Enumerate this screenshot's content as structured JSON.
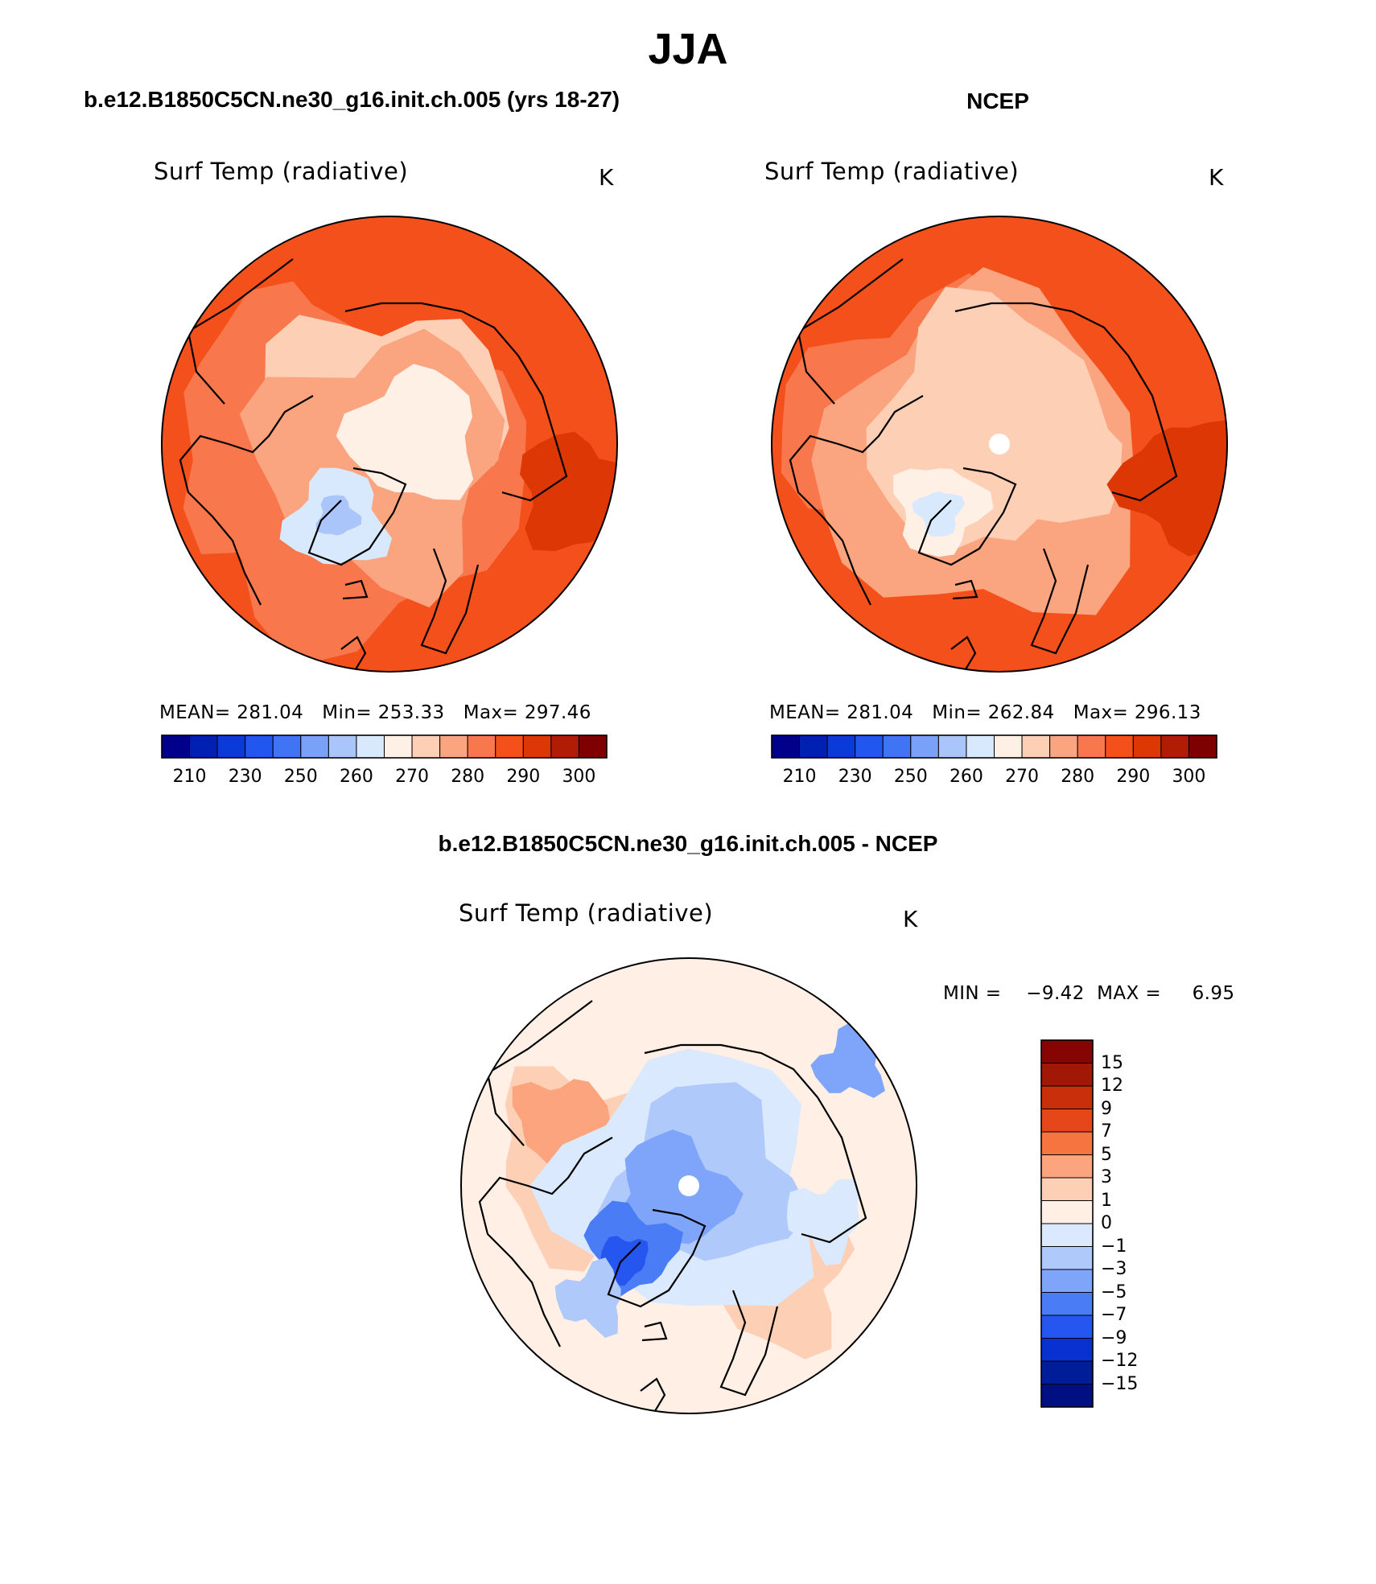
{
  "title": "JJA",
  "palette_abs": [
    "#00008b",
    "#0020b4",
    "#0a3ad8",
    "#2156ef",
    "#3f75f5",
    "#79a1f8",
    "#a9c5fa",
    "#d8e8fd",
    "#fff0e6",
    "#fdd0b6",
    "#fba580",
    "#f9774c",
    "#f4501c",
    "#dd3706",
    "#b01d04",
    "#7f0000"
  ],
  "palette_diff": [
    "#000f82",
    "#001d99",
    "#0930d0",
    "#2556f0",
    "#4a7cf6",
    "#7ea5f9",
    "#afc9fb",
    "#dae9fe",
    "#ffefe5",
    "#fdcfb4",
    "#fba47e",
    "#f5743f",
    "#e5471a",
    "#c82f0a",
    "#a21807",
    "#860502"
  ],
  "panels": [
    {
      "title": "b.e12.B1850C5CN.ne30_g16.init.ch.005 (yrs 18-27)",
      "variable": "Surf Temp (radiative)",
      "units": "K",
      "stats_line": "MEAN= 281.04   Min= 253.33   Max= 297.46",
      "colorbar_ticks": [
        "210",
        "230",
        "250",
        "260",
        "270",
        "280",
        "290",
        "300"
      ]
    },
    {
      "title": "NCEP",
      "variable": "Surf Temp (radiative)",
      "units": "K",
      "stats_line": "MEAN= 281.04   Min= 262.84   Max= 296.13",
      "colorbar_ticks": [
        "210",
        "230",
        "250",
        "260",
        "270",
        "280",
        "290",
        "300"
      ]
    },
    {
      "title": "b.e12.B1850C5CN.ne30_g16.init.ch.005 - NCEP",
      "variable": "Surf Temp (radiative)",
      "units": "K",
      "min_max_line": "MIN =    −9.42  MAX =     6.95",
      "colorbar_ticks": [
        "15",
        "12",
        "9",
        "7",
        "5",
        "3",
        "1",
        "0",
        "−1",
        "−3",
        "−5",
        "−7",
        "−9",
        "−12",
        "−15"
      ]
    }
  ]
}
